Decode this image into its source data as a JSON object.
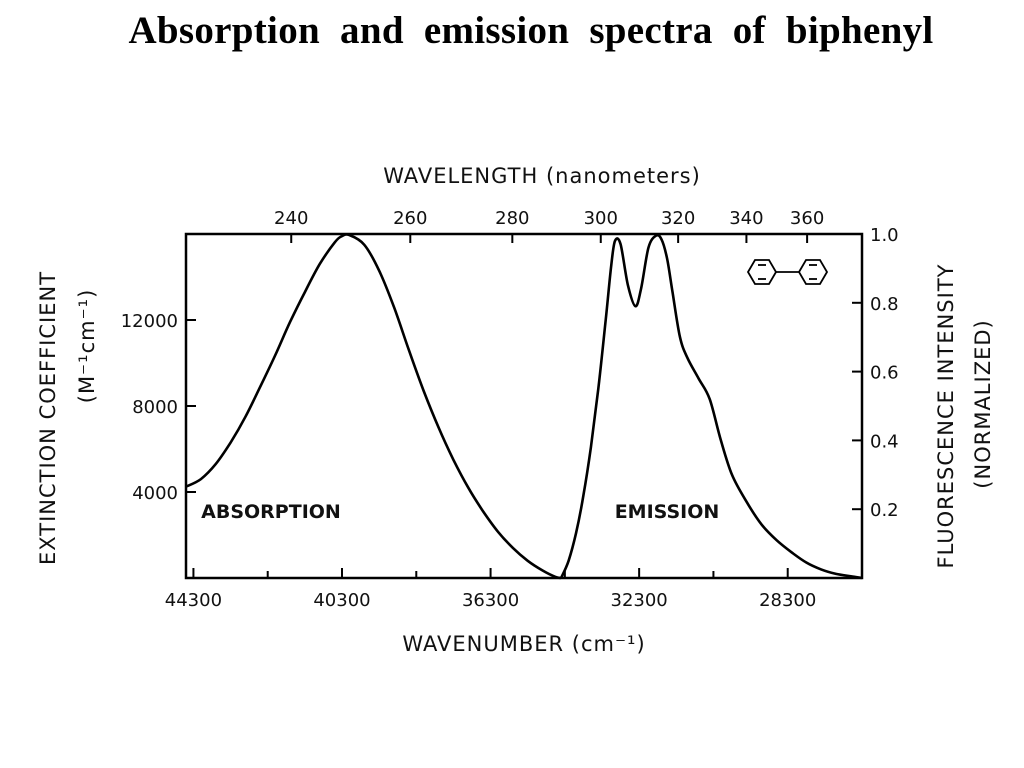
{
  "slide": {
    "title": "Absorption and emission spectra of biphenyl"
  },
  "chart_data": {
    "type": "line",
    "title": "",
    "xlabel": "WAVENUMBER (cm⁻¹)",
    "x2label": "WAVELENGTH (nanometers)",
    "ylabel_left_line1": "EXTINCTION COEFFICIENT",
    "ylabel_left_line2": "(M⁻¹cm⁻¹)",
    "ylabel_right_line1": "FLUORESCENCE INTENSITY",
    "ylabel_right_line2": "(NORMALIZED)",
    "xlim": [
      44500,
      26300
    ],
    "x_ticks": [
      44300,
      40300,
      36300,
      32300,
      28300
    ],
    "x_tick_labels": [
      "44300",
      "40300",
      "36300",
      "32300",
      "28300"
    ],
    "x2_ticks_nm": [
      240,
      260,
      280,
      300,
      320,
      340,
      360
    ],
    "x2_tick_labels": [
      "240",
      "260",
      "280",
      "300",
      "320",
      "340",
      "360"
    ],
    "ylim_left": [
      0,
      16000
    ],
    "y_left_ticks": [
      4000,
      8000,
      12000
    ],
    "y_left_tick_labels": [
      "4000",
      "8000",
      "12000"
    ],
    "ylim_right": [
      0,
      1.0
    ],
    "y_right_ticks": [
      0.2,
      0.4,
      0.6,
      0.8,
      1.0
    ],
    "y_right_tick_labels": [
      "0.2",
      "0.4",
      "0.6",
      "0.8",
      "1.0"
    ],
    "grid": false,
    "annotations": [
      "ABSORPTION",
      "EMISSION"
    ],
    "structure_icon": "biphenyl-structure-icon",
    "series": [
      {
        "label": "ABSORPTION",
        "axis": "left",
        "x": [
          44500,
          44100,
          43700,
          43300,
          42900,
          42500,
          42100,
          41700,
          41300,
          40900,
          40500,
          40300,
          40100,
          39700,
          39300,
          38900,
          38500,
          38100,
          37700,
          37300,
          36900,
          36500,
          36100,
          35700,
          35300,
          34900,
          34550,
          34400
        ],
        "y": [
          4250,
          4600,
          5300,
          6300,
          7500,
          8900,
          10350,
          11900,
          13300,
          14600,
          15600,
          15900,
          15950,
          15500,
          14300,
          12600,
          10600,
          8700,
          7000,
          5500,
          4200,
          3100,
          2150,
          1400,
          800,
          350,
          50,
          0
        ]
      },
      {
        "label": "EMISSION",
        "axis": "right",
        "x": [
          34400,
          34200,
          34000,
          33800,
          33600,
          33400,
          33200,
          33050,
          32950,
          32800,
          32600,
          32400,
          32250,
          32050,
          31850,
          31700,
          31550,
          31400,
          31200,
          31000,
          30700,
          30400,
          30100,
          29800,
          29400,
          29000,
          28600,
          28200,
          27800,
          27400,
          27000,
          26600,
          26300
        ],
        "y": [
          0.0,
          0.05,
          0.13,
          0.24,
          0.38,
          0.55,
          0.75,
          0.91,
          0.98,
          0.97,
          0.85,
          0.79,
          0.84,
          0.96,
          0.995,
          0.985,
          0.93,
          0.83,
          0.7,
          0.64,
          0.58,
          0.52,
          0.4,
          0.3,
          0.22,
          0.155,
          0.11,
          0.075,
          0.045,
          0.025,
          0.012,
          0.005,
          0.0
        ]
      }
    ]
  }
}
